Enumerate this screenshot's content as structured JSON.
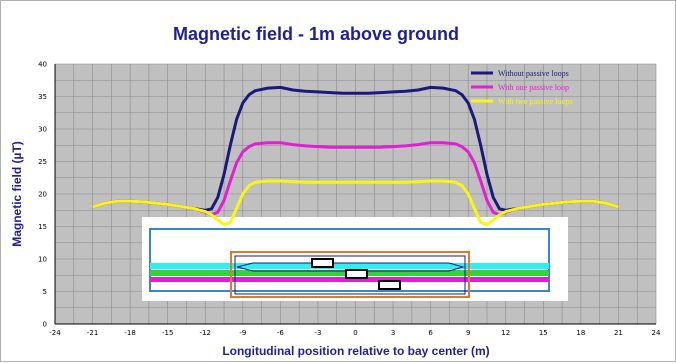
{
  "chart_data": {
    "type": "line",
    "title": "Magnetic field - 1m above ground",
    "xlabel": "Longitudinal position relative to bay center (m)",
    "ylabel": "Magnetic field (µT)",
    "xlim": [
      -24,
      24
    ],
    "ylim": [
      0,
      40
    ],
    "xticks": [
      "-24",
      "-21",
      "-18",
      "-15",
      "-12",
      "-9",
      "-6",
      "-3",
      "0",
      "3",
      "6",
      "9",
      "12",
      "15",
      "18",
      "21",
      "24"
    ],
    "yticks": [
      "0",
      "5",
      "10",
      "15",
      "20",
      "25",
      "30",
      "35",
      "40"
    ],
    "grid": true,
    "legend_position": "top-right",
    "series": [
      {
        "name": "Without passive loops",
        "color": "#1a1a7e",
        "x": [
          -21,
          -20,
          -19,
          -18,
          -17,
          -16,
          -15,
          -14,
          -13,
          -12,
          -11.5,
          -11,
          -10.5,
          -10,
          -9.5,
          -9,
          -8.5,
          -8,
          -7,
          -6,
          -5,
          -4,
          -3,
          -2,
          -1,
          0,
          1,
          2,
          3,
          4,
          5,
          6,
          7,
          8,
          8.5,
          9,
          9.5,
          10,
          10.5,
          11,
          11.5,
          12,
          13,
          14,
          15,
          16,
          17,
          18,
          19,
          20,
          21
        ],
        "y": [
          18,
          18.6,
          18.9,
          18.9,
          18.8,
          18.6,
          18.4,
          18.1,
          17.8,
          17.5,
          17.7,
          19.5,
          23.0,
          27.5,
          31.5,
          34.0,
          35.3,
          35.9,
          36.3,
          36.4,
          36.0,
          35.8,
          35.7,
          35.6,
          35.5,
          35.5,
          35.5,
          35.6,
          35.7,
          35.8,
          36.0,
          36.4,
          36.3,
          35.9,
          35.3,
          34.0,
          31.5,
          27.5,
          23.0,
          19.5,
          17.7,
          17.5,
          17.8,
          18.1,
          18.4,
          18.6,
          18.8,
          18.9,
          18.9,
          18.6,
          18
        ]
      },
      {
        "name": "With one passive loop",
        "color": "#e11fd6",
        "x": [
          -21,
          -20,
          -19,
          -18,
          -17,
          -16,
          -15,
          -14,
          -13,
          -12,
          -11.5,
          -11,
          -10.5,
          -10,
          -9.5,
          -9,
          -8.5,
          -8,
          -7,
          -6,
          -5,
          -4,
          -3,
          -2,
          -1,
          0,
          1,
          2,
          3,
          4,
          5,
          6,
          7,
          8,
          8.5,
          9,
          9.5,
          10,
          10.5,
          11,
          11.5,
          12,
          13,
          14,
          15,
          16,
          17,
          18,
          19,
          20,
          21
        ],
        "y": [
          18,
          18.6,
          18.9,
          18.9,
          18.8,
          18.6,
          18.4,
          18.1,
          17.8,
          17.2,
          16.8,
          17.2,
          19.0,
          22.0,
          24.8,
          26.5,
          27.3,
          27.7,
          27.9,
          27.9,
          27.6,
          27.4,
          27.3,
          27.2,
          27.2,
          27.2,
          27.2,
          27.2,
          27.3,
          27.4,
          27.6,
          27.9,
          27.9,
          27.7,
          27.3,
          26.5,
          24.8,
          22.0,
          19.0,
          17.2,
          16.8,
          17.2,
          17.8,
          18.1,
          18.4,
          18.6,
          18.8,
          18.9,
          18.9,
          18.6,
          18
        ]
      },
      {
        "name": "With two passive loops",
        "color": "#f7f710",
        "x": [
          -21,
          -20,
          -19,
          -18,
          -17,
          -16,
          -15,
          -14,
          -13,
          -12,
          -11.5,
          -11,
          -10.5,
          -10,
          -9.5,
          -9,
          -8.5,
          -8,
          -7,
          -6,
          -5,
          -4,
          -3,
          -2,
          -1,
          0,
          1,
          2,
          3,
          4,
          5,
          6,
          7,
          8,
          8.5,
          9,
          9.5,
          10,
          10.5,
          11,
          11.5,
          12,
          13,
          14,
          15,
          16,
          17,
          18,
          19,
          20,
          21
        ],
        "y": [
          18,
          18.6,
          18.9,
          18.9,
          18.8,
          18.6,
          18.4,
          18.1,
          17.8,
          17.3,
          16.8,
          16.0,
          15.3,
          15.6,
          17.8,
          20.0,
          21.3,
          21.8,
          22.0,
          22.0,
          21.9,
          21.8,
          21.8,
          21.8,
          21.8,
          21.8,
          21.8,
          21.8,
          21.8,
          21.8,
          21.9,
          22.0,
          22.0,
          21.8,
          21.3,
          20.0,
          17.8,
          15.6,
          15.3,
          16.0,
          16.8,
          17.3,
          17.8,
          18.1,
          18.4,
          18.6,
          18.8,
          18.9,
          18.9,
          18.6,
          18
        ]
      }
    ]
  },
  "colors": {
    "plot_background": "#c0c0c0",
    "gridline": "#8a8a8a",
    "title": "#1f1f9c",
    "inset_border": "#3a84d4",
    "inset_bay": "#e07a2a",
    "inset_band_cyan": "#2ff0f0",
    "inset_band_green": "#35d23a",
    "inset_band_magenta": "#e11fd6"
  }
}
